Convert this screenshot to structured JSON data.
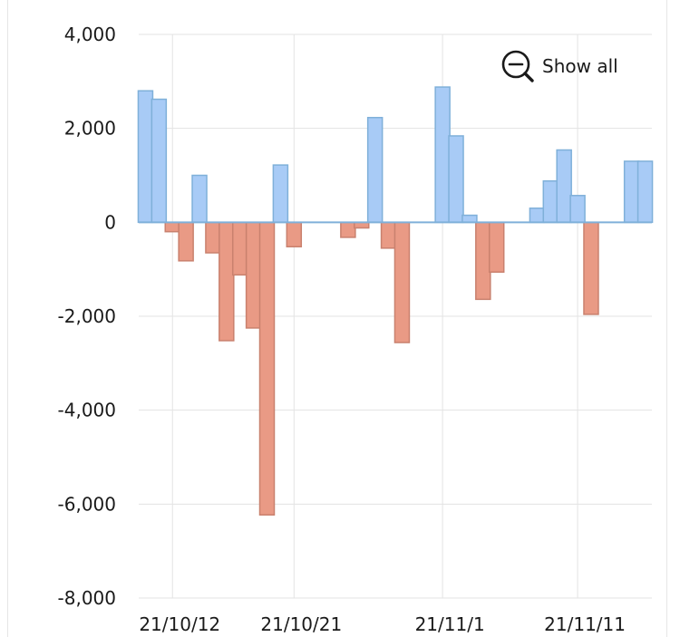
{
  "zoom_control": {
    "label": "Show all",
    "icon": "zoom-out-icon"
  },
  "colors": {
    "positive_fill": "#a8cbf6",
    "positive_stroke": "#7fb0d9",
    "negative_fill": "#e99a85",
    "negative_stroke": "#c9816e",
    "grid": "#e3e3e3",
    "zero_line": "#7fb0d9"
  },
  "chart_data": {
    "type": "bar",
    "ylim": [
      -8000,
      4000
    ],
    "y_ticks": [
      4000,
      2000,
      0,
      -2000,
      -4000,
      -6000,
      -8000
    ],
    "y_tick_labels": [
      "4,000",
      "2,000",
      "0",
      "-2,000",
      "-4,000",
      "-6,000",
      "-8,000"
    ],
    "x_tick_labels": [
      "21/10/12",
      "21/10/21",
      "21/11/1",
      "21/11/11"
    ],
    "x_ticks": [
      "2021-10-12",
      "2021-10-21",
      "2021-11-01",
      "2021-11-11"
    ],
    "grid": true,
    "x": [
      "2021-10-10",
      "2021-10-11",
      "2021-10-12",
      "2021-10-13",
      "2021-10-14",
      "2021-10-15",
      "2021-10-16",
      "2021-10-17",
      "2021-10-18",
      "2021-10-19",
      "2021-10-20",
      "2021-10-21",
      "2021-10-22",
      "2021-10-25",
      "2021-10-26",
      "2021-10-27",
      "2021-10-28",
      "2021-10-29",
      "2021-11-01",
      "2021-11-02",
      "2021-11-03",
      "2021-11-04",
      "2021-11-05",
      "2021-11-08",
      "2021-11-09",
      "2021-11-10",
      "2021-11-11",
      "2021-11-12",
      "2021-11-15",
      "2021-11-16"
    ],
    "values": [
      2800,
      2620,
      -200,
      -820,
      1000,
      -650,
      -2520,
      -1120,
      -2250,
      -6230,
      1220,
      -520,
      0,
      -320,
      -120,
      2230,
      -550,
      -2560,
      2880,
      1840,
      150,
      -1640,
      -1060,
      300,
      880,
      1540,
      570,
      -1960,
      1300,
      1300
    ]
  }
}
